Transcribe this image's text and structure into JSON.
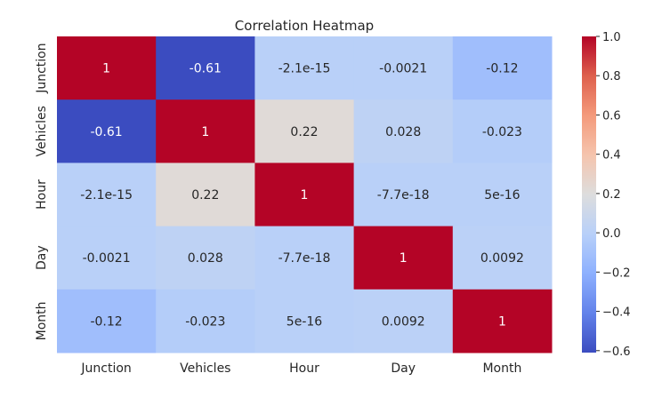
{
  "chart_data": {
    "type": "heatmap",
    "title": "Correlation Heatmap",
    "x_categories": [
      "Junction",
      "Vehicles",
      "Hour",
      "Day",
      "Month"
    ],
    "y_categories": [
      "Junction",
      "Vehicles",
      "Hour",
      "Day",
      "Month"
    ],
    "values": [
      [
        1,
        -0.61,
        -2.1e-15,
        -0.0021,
        -0.12
      ],
      [
        -0.61,
        1,
        0.22,
        0.028,
        -0.023
      ],
      [
        -2.1e-15,
        0.22,
        1,
        -7.7e-18,
        5e-16
      ],
      [
        -0.0021,
        0.028,
        -7.7e-18,
        1,
        0.0092
      ],
      [
        -0.12,
        -0.023,
        5e-16,
        0.0092,
        1
      ]
    ],
    "annotations": [
      [
        "1",
        "-0.61",
        "-2.1e-15",
        "-0.0021",
        "-0.12"
      ],
      [
        "-0.61",
        "1",
        "0.22",
        "0.028",
        "-0.023"
      ],
      [
        "-2.1e-15",
        "0.22",
        "1",
        "-7.7e-18",
        "5e-16"
      ],
      [
        "-0.0021",
        "0.028",
        "-7.7e-18",
        "1",
        "0.0092"
      ],
      [
        "-0.12",
        "-0.023",
        "5e-16",
        "0.0092",
        "1"
      ]
    ],
    "colormap": "coolwarm",
    "vmin": -0.61,
    "vmax": 1.0,
    "colorbar_ticks": [
      1.0,
      0.8,
      0.6,
      0.4,
      0.2,
      0.0,
      -0.2,
      -0.4,
      -0.6
    ],
    "colorbar_tick_labels": [
      "1.0",
      "0.8",
      "0.6",
      "0.4",
      "0.2",
      "0.0",
      "−0.2",
      "−0.4",
      "−0.6"
    ],
    "grid": false,
    "legend": "colorbar-right"
  }
}
